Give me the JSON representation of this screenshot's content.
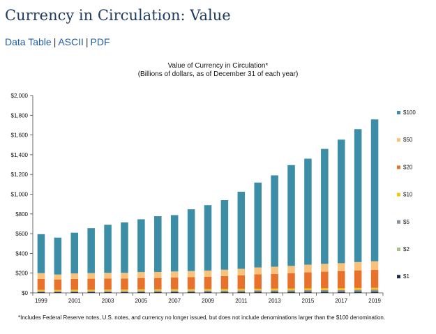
{
  "page": {
    "title": "Currency in Circulation: Value",
    "links": [
      {
        "label": "Data Table"
      },
      {
        "label": "ASCII"
      },
      {
        "label": "PDF"
      }
    ],
    "separator": "|"
  },
  "chart_data": {
    "type": "bar",
    "stacked": true,
    "title": "Value of Currency in Circulation*",
    "subtitle": "(Billions of dollars, as of December 31 of each year)",
    "xlabel": "",
    "ylabel": "",
    "ylim": [
      0,
      2000
    ],
    "y_ticks": [
      0,
      200,
      400,
      600,
      800,
      1000,
      1200,
      1400,
      1600,
      1800,
      2000
    ],
    "y_tick_labels": [
      "$0",
      "$200",
      "$400",
      "$600",
      "$800",
      "$1,000",
      "$1,200",
      "$1,400",
      "$1,600",
      "$1,800",
      "$2,000"
    ],
    "categories": [
      "1999",
      "2000",
      "2001",
      "2002",
      "2003",
      "2004",
      "2005",
      "2006",
      "2007",
      "2008",
      "2009",
      "2010",
      "2011",
      "2012",
      "2013",
      "2014",
      "2015",
      "2016",
      "2017",
      "2018",
      "2019"
    ],
    "x_tick_labels": [
      "1999",
      "",
      "2001",
      "",
      "2003",
      "",
      "2005",
      "",
      "2007",
      "",
      "2009",
      "",
      "2011",
      "",
      "2013",
      "",
      "2015",
      "",
      "2017",
      "",
      "2019"
    ],
    "legend_position": "right",
    "series": [
      {
        "name": "$1",
        "color": "#1b2f4f",
        "values": [
          7,
          7,
          8,
          8,
          8,
          8,
          9,
          9,
          9,
          9,
          10,
          10,
          10,
          11,
          11,
          11,
          12,
          12,
          12,
          13,
          13
        ]
      },
      {
        "name": "$2",
        "color": "#a9c18a",
        "values": [
          1,
          1,
          1,
          1,
          1,
          1,
          2,
          2,
          2,
          2,
          2,
          2,
          2,
          2,
          2,
          2,
          2,
          2,
          2,
          3,
          3
        ]
      },
      {
        "name": "$5",
        "color": "#8a939e",
        "values": [
          9,
          9,
          9,
          9,
          10,
          10,
          10,
          10,
          11,
          11,
          11,
          11,
          12,
          13,
          13,
          14,
          14,
          15,
          15,
          15,
          16
        ]
      },
      {
        "name": "$10",
        "color": "#f5c61a",
        "values": [
          14,
          13,
          14,
          14,
          14,
          14,
          15,
          15,
          15,
          15,
          16,
          16,
          16,
          16,
          17,
          17,
          18,
          18,
          18,
          19,
          19
        ]
      },
      {
        "name": "$20",
        "color": "#e8722c",
        "values": [
          112,
          104,
          110,
          112,
          113,
          112,
          115,
          115,
          118,
          122,
          124,
          131,
          137,
          146,
          149,
          154,
          162,
          168,
          173,
          178,
          182
        ]
      },
      {
        "name": "$50",
        "color": "#f8c27c",
        "values": [
          57,
          52,
          55,
          56,
          57,
          58,
          60,
          61,
          62,
          62,
          63,
          65,
          67,
          70,
          73,
          75,
          78,
          79,
          81,
          84,
          87
        ]
      },
      {
        "name": "$100",
        "color": "#3b8ea5",
        "values": [
          395,
          374,
          413,
          456,
          487,
          511,
          535,
          565,
          571,
          626,
          663,
          705,
          781,
          860,
          926,
          1022,
          1074,
          1165,
          1252,
          1347,
          1438
        ]
      }
    ],
    "legend_order": [
      "$100",
      "$50",
      "$20",
      "$10",
      "$5",
      "$2",
      "$1"
    ],
    "footnote": "*Includes Federal Reserve notes, U.S. notes, and currency no longer issued, but does not include denominations larger than the $100 denomination."
  }
}
